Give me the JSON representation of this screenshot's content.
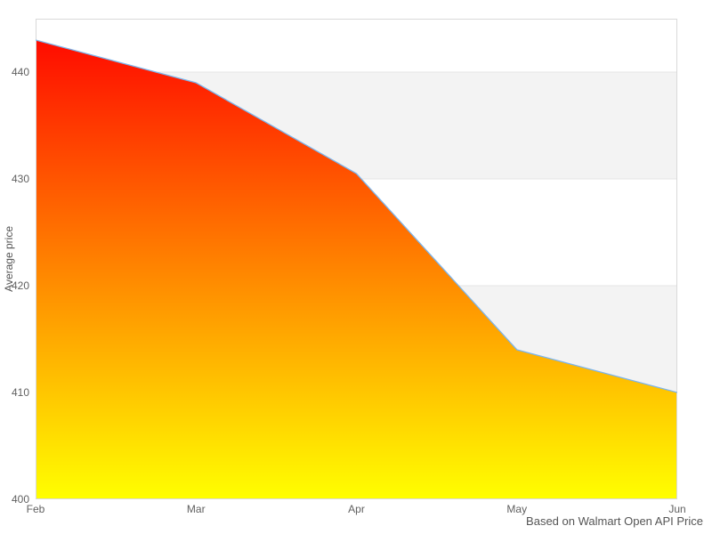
{
  "chart_data": {
    "type": "area",
    "title": "",
    "x_categories": [
      "Feb",
      "Mar",
      "Apr",
      "May",
      "Jun"
    ],
    "series": [
      {
        "name": "Average price",
        "values": [
          443,
          439,
          430.5,
          414,
          410
        ]
      }
    ],
    "xlabel": "",
    "ylabel": "Average price",
    "ylim": [
      400,
      445
    ],
    "yticks": [
      400,
      410,
      420,
      430,
      440
    ],
    "grid": "horizontal gridlines with alternating shaded bands",
    "legend": "none",
    "caption": "Based on Walmart Open API Price",
    "colors": {
      "area_gradient_top": "#ff0000",
      "area_gradient_bottom": "#ffff00",
      "line": "#7cb5ec",
      "band": "#f3f3f3",
      "gridline": "#e6e6e6",
      "plot_border": "#d9d9d9",
      "tick_label": "#606060",
      "axis_title": "#555555",
      "caption_color": "#555555",
      "background": "#ffffff"
    }
  }
}
